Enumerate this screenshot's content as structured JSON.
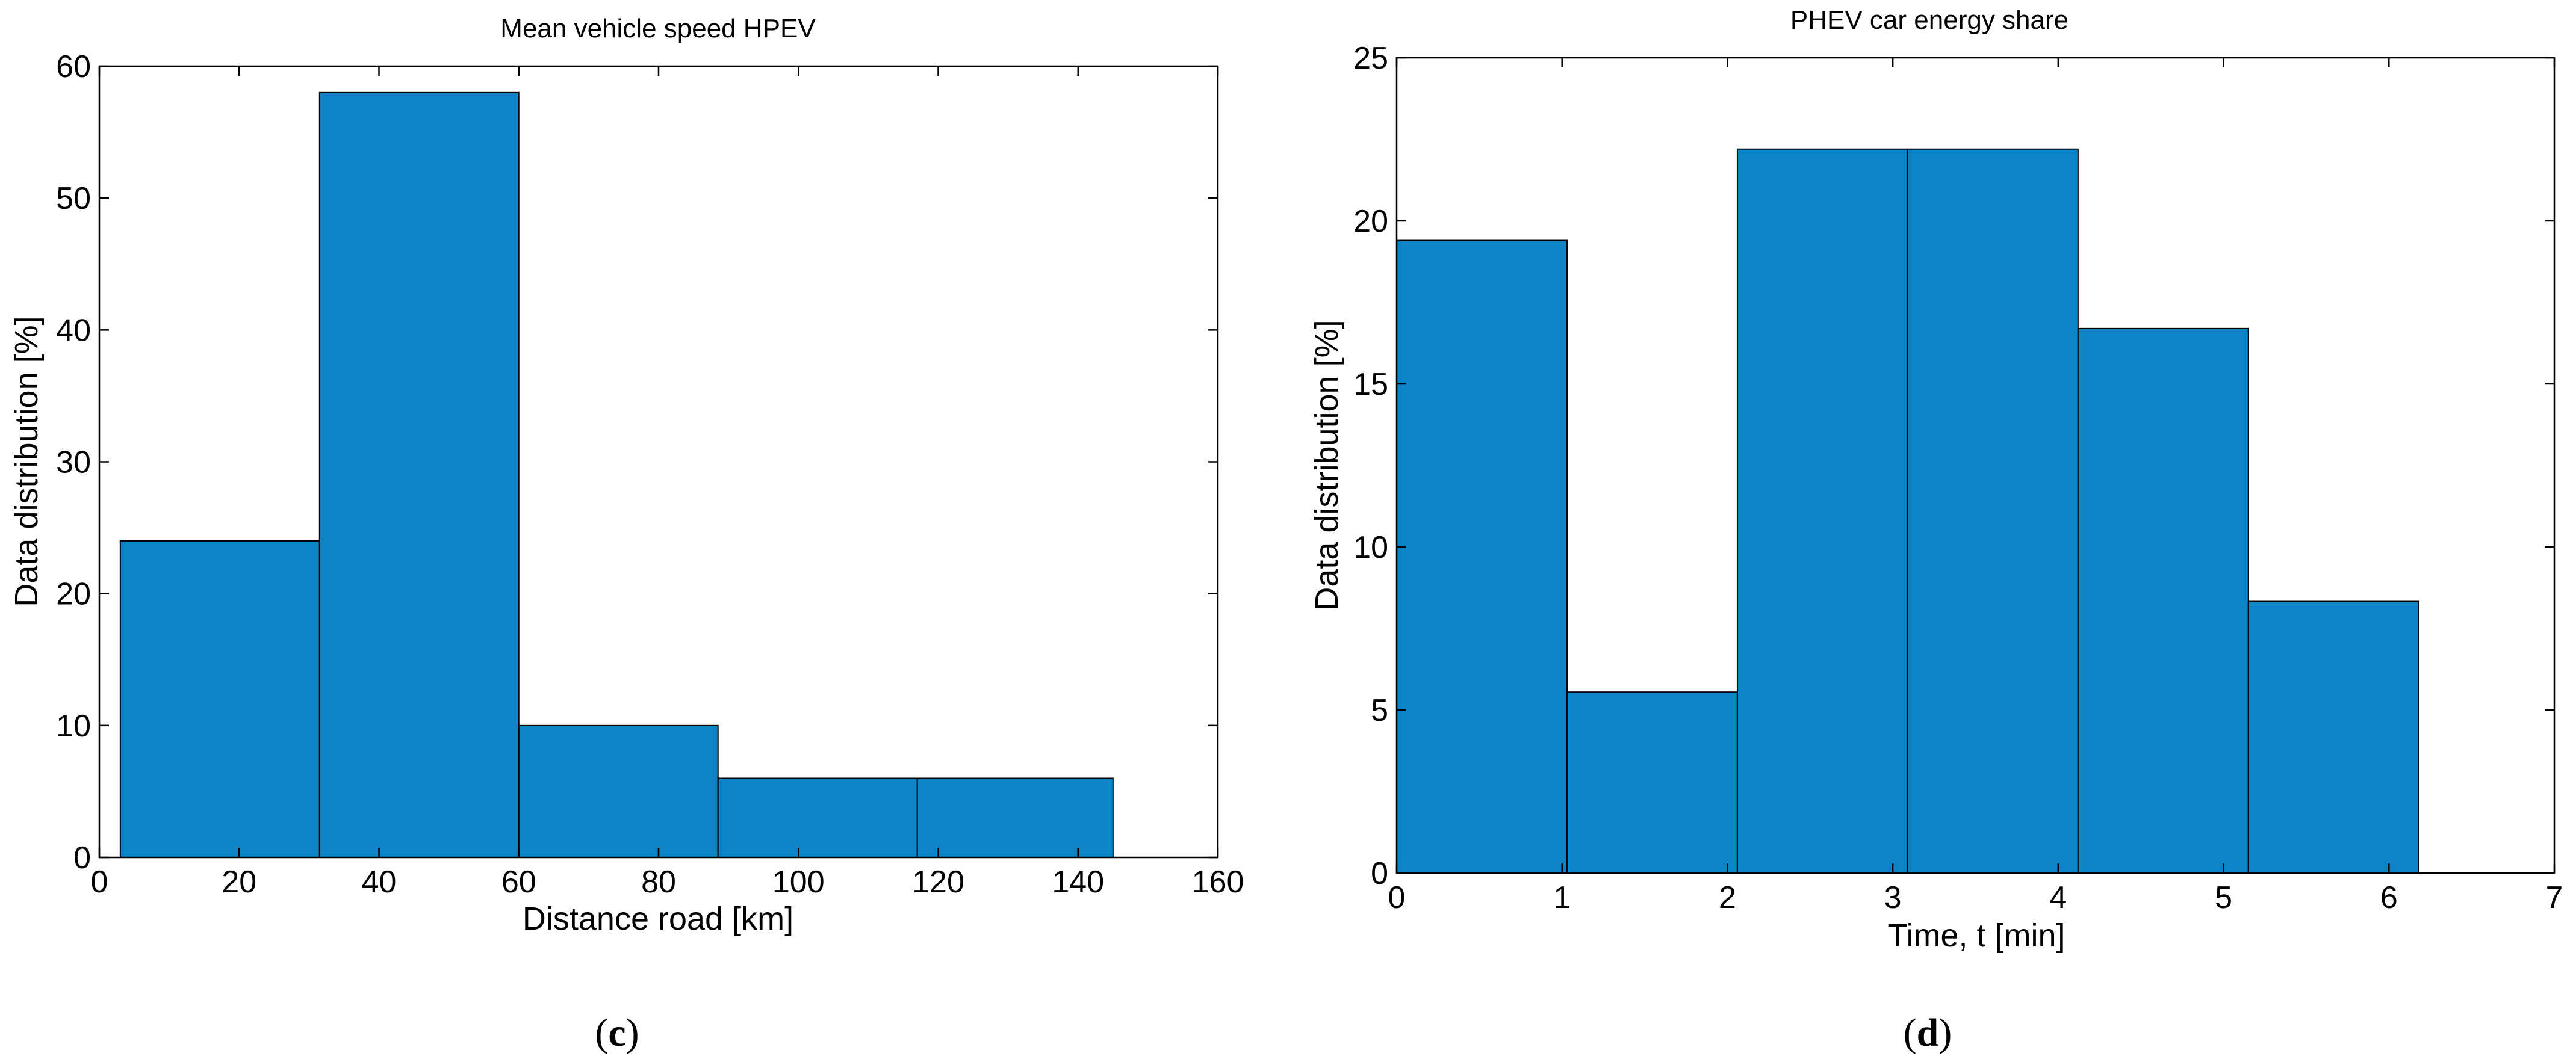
{
  "colors": {
    "bar_fill": "#0b84c8",
    "bar_edge": "#000000",
    "axis": "#000000"
  },
  "chart_data": [
    {
      "type": "bar",
      "title": "Mean vehicle speed HPEV",
      "xlabel": "Distance road [km]",
      "ylabel": "Data distribution [%]",
      "xlim": [
        0,
        160
      ],
      "ylim": [
        0,
        60
      ],
      "xticks": [
        0,
        20,
        40,
        60,
        80,
        100,
        120,
        140,
        160
      ],
      "yticks": [
        0,
        10,
        20,
        30,
        40,
        50,
        60
      ],
      "bins": [
        {
          "x0": 3,
          "x1": 31.5,
          "value": 24
        },
        {
          "x0": 31.5,
          "x1": 60,
          "value": 58
        },
        {
          "x0": 60,
          "x1": 88.5,
          "value": 10
        },
        {
          "x0": 88.5,
          "x1": 117,
          "value": 6
        },
        {
          "x0": 117,
          "x1": 145,
          "value": 6
        }
      ],
      "caption_prefix": "(",
      "caption_letter": "c",
      "caption_suffix": ")"
    },
    {
      "type": "bar",
      "title": "PHEV car energy share",
      "xlabel": "Time, t [min]",
      "ylabel": "Data distribution [%]",
      "xlim": [
        0,
        7
      ],
      "ylim": [
        0,
        25
      ],
      "xticks": [
        0,
        1,
        2,
        3,
        4,
        5,
        6,
        7
      ],
      "yticks": [
        0,
        5,
        10,
        15,
        20,
        25
      ],
      "bins": [
        {
          "x0": 0,
          "x1": 1.03,
          "value": 19.4
        },
        {
          "x0": 1.03,
          "x1": 2.06,
          "value": 5.55
        },
        {
          "x0": 2.06,
          "x1": 3.09,
          "value": 22.2
        },
        {
          "x0": 3.09,
          "x1": 4.12,
          "value": 22.2
        },
        {
          "x0": 4.12,
          "x1": 5.15,
          "value": 16.7
        },
        {
          "x0": 5.15,
          "x1": 6.18,
          "value": 8.33
        }
      ],
      "caption_prefix": "(",
      "caption_letter": "d",
      "caption_suffix": ")"
    }
  ]
}
